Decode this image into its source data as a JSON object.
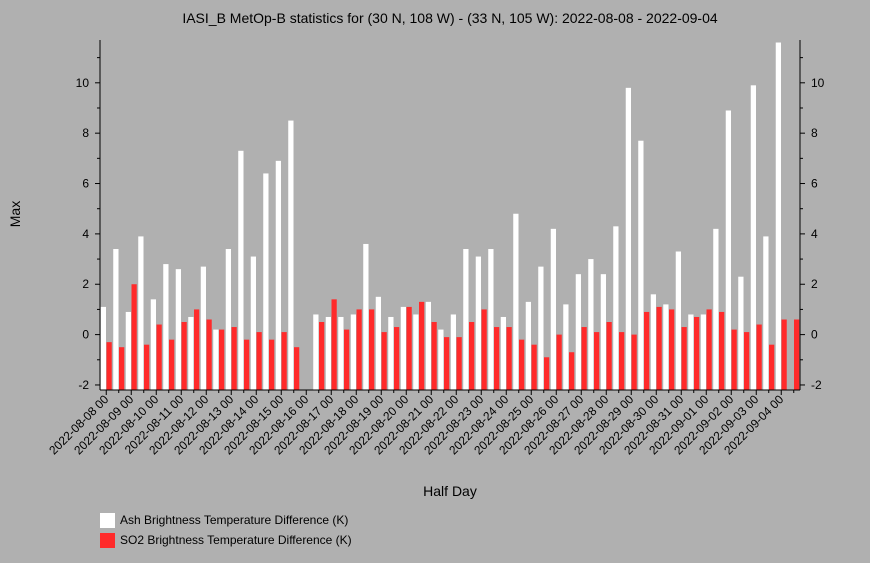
{
  "chart_data": {
    "type": "bar",
    "title": "IASI_B MetOp-B statistics for (30 N, 108 W) - (33 N, 105 W): 2022-08-08 - 2022-09-04",
    "xlabel": "Half Day",
    "ylabel": "Max",
    "ylim": [
      -2.2,
      11.7
    ],
    "yticks": [
      -2,
      0,
      2,
      4,
      6,
      8,
      10
    ],
    "categories": [
      "2022-08-08 00",
      "2022-08-08 12",
      "2022-08-09 00",
      "2022-08-09 12",
      "2022-08-10 00",
      "2022-08-10 12",
      "2022-08-11 00",
      "2022-08-11 12",
      "2022-08-12 00",
      "2022-08-12 12",
      "2022-08-13 00",
      "2022-08-13 12",
      "2022-08-14 00",
      "2022-08-14 12",
      "2022-08-15 00",
      "2022-08-15 12",
      "2022-08-16 00",
      "2022-08-16 12",
      "2022-08-17 00",
      "2022-08-17 12",
      "2022-08-18 00",
      "2022-08-18 12",
      "2022-08-19 00",
      "2022-08-19 12",
      "2022-08-20 00",
      "2022-08-20 12",
      "2022-08-21 00",
      "2022-08-21 12",
      "2022-08-22 00",
      "2022-08-22 12",
      "2022-08-23 00",
      "2022-08-23 12",
      "2022-08-24 00",
      "2022-08-24 12",
      "2022-08-25 00",
      "2022-08-25 12",
      "2022-08-26 00",
      "2022-08-26 12",
      "2022-08-27 00",
      "2022-08-27 12",
      "2022-08-28 00",
      "2022-08-28 12",
      "2022-08-29 00",
      "2022-08-29 12",
      "2022-08-30 00",
      "2022-08-30 12",
      "2022-08-31 00",
      "2022-08-31 12",
      "2022-09-01 00",
      "2022-09-01 12",
      "2022-09-02 00",
      "2022-09-02 12",
      "2022-09-03 00",
      "2022-09-03 12",
      "2022-09-04 00",
      "2022-09-04 12"
    ],
    "tick_labels": [
      "2022-08-08 00",
      "2022-08-09 00",
      "2022-08-10 00",
      "2022-08-11 00",
      "2022-08-12 00",
      "2022-08-13 00",
      "2022-08-14 00",
      "2022-08-15 00",
      "2022-08-16 00",
      "2022-08-17 00",
      "2022-08-18 00",
      "2022-08-19 00",
      "2022-08-20 00",
      "2022-08-21 00",
      "2022-08-22 00",
      "2022-08-23 00",
      "2022-08-24 00",
      "2022-08-25 00",
      "2022-08-26 00",
      "2022-08-27 00",
      "2022-08-28 00",
      "2022-08-29 00",
      "2022-08-30 00",
      "2022-08-31 00",
      "2022-09-01 00",
      "2022-09-02 00",
      "2022-09-03 00",
      "2022-09-04 00"
    ],
    "series": [
      {
        "name": "Ash Brightness Temperature Difference (K)",
        "color": "#ffffff",
        "values": [
          1.1,
          3.4,
          0.9,
          3.9,
          1.4,
          2.8,
          2.6,
          0.7,
          2.7,
          0.2,
          3.4,
          7.3,
          3.1,
          6.4,
          6.9,
          8.5,
          null,
          0.8,
          0.7,
          0.7,
          0.8,
          3.6,
          1.5,
          0.7,
          1.1,
          0.8,
          1.3,
          0.2,
          0.8,
          3.4,
          3.1,
          3.4,
          0.7,
          4.8,
          1.3,
          2.7,
          4.2,
          1.2,
          2.4,
          3.0,
          2.4,
          4.3,
          9.8,
          7.7,
          1.6,
          1.2,
          3.3,
          0.8,
          0.8,
          4.2,
          8.9,
          2.3,
          9.9,
          3.9,
          11.6,
          null
        ]
      },
      {
        "name": "SO2 Brightness Temperature Difference (K)",
        "color": "#ff2a2a",
        "values": [
          -0.3,
          -0.5,
          2.0,
          -0.4,
          0.4,
          -0.2,
          0.5,
          1.0,
          0.6,
          0.2,
          0.3,
          -0.2,
          0.1,
          -0.2,
          0.1,
          -0.5,
          null,
          0.5,
          1.4,
          0.2,
          1.0,
          1.0,
          0.1,
          0.3,
          1.1,
          1.3,
          0.5,
          -0.1,
          -0.1,
          0.5,
          1.0,
          0.3,
          0.3,
          -0.2,
          -0.4,
          -0.9,
          0.0,
          -0.7,
          0.3,
          0.1,
          0.5,
          0.1,
          0.0,
          0.9,
          1.1,
          1.0,
          0.3,
          0.7,
          1.0,
          0.9,
          0.2,
          0.1,
          0.4,
          -0.4,
          0.6,
          0.6
        ]
      }
    ],
    "grid": false,
    "legend": "bottom-left"
  }
}
